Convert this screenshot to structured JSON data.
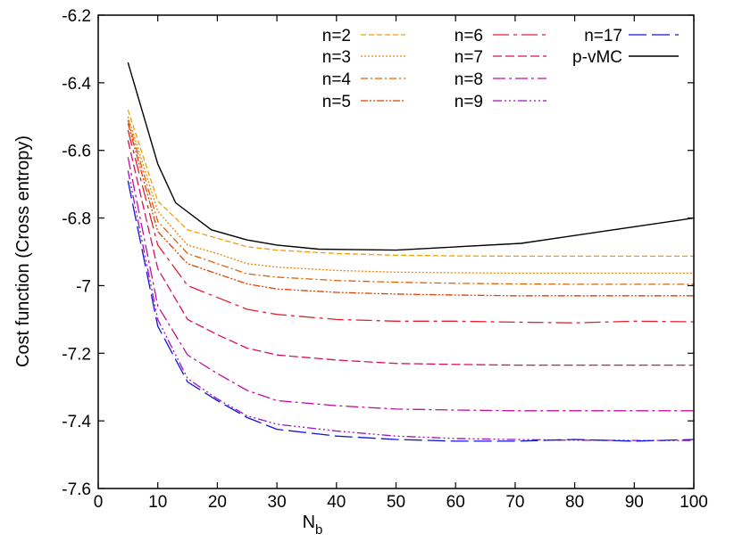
{
  "chart_data": {
    "type": "line",
    "title": "",
    "xlabel": "N",
    "xlabel_sub": "b",
    "ylabel": "Cost function (Cross entropy)",
    "xlim": [
      0,
      100
    ],
    "ylim": [
      -7.6,
      -6.2
    ],
    "xticks": [
      0,
      10,
      20,
      30,
      40,
      50,
      60,
      70,
      80,
      90,
      100
    ],
    "yticks": [
      -7.6,
      -7.4,
      -7.2,
      -7,
      -6.8,
      -6.6,
      -6.4,
      -6.2
    ],
    "xtick_labels": [
      "0",
      "10",
      "20",
      "30",
      "40",
      "50",
      "60",
      "70",
      "80",
      "90",
      "100"
    ],
    "ytick_labels": [
      "-7.6",
      "-7.4",
      "-7.2",
      "-7",
      "-6.8",
      "-6.6",
      "-6.4",
      "-6.2"
    ],
    "grid": false,
    "legend_position": "top-right",
    "series": [
      {
        "name": "n=2",
        "color": "#f0a000",
        "dash": "6,3",
        "x": [
          5,
          10,
          15,
          20,
          25,
          30,
          40,
          50,
          60,
          70,
          80,
          90,
          100
        ],
        "y": [
          -6.48,
          -6.75,
          -6.835,
          -6.86,
          -6.885,
          -6.895,
          -6.905,
          -6.91,
          -6.912,
          -6.913,
          -6.913,
          -6.913,
          -6.913
        ]
      },
      {
        "name": "n=3",
        "color": "#f08000",
        "dash": "2,2",
        "x": [
          5,
          10,
          15,
          20,
          25,
          30,
          40,
          50,
          60,
          70,
          80,
          90,
          100
        ],
        "y": [
          -6.5,
          -6.78,
          -6.88,
          -6.905,
          -6.935,
          -6.945,
          -6.955,
          -6.96,
          -6.962,
          -6.963,
          -6.963,
          -6.963,
          -6.963
        ]
      },
      {
        "name": "n=4",
        "color": "#e06000",
        "dash": "8,3,2,3",
        "x": [
          5,
          10,
          15,
          20,
          25,
          30,
          40,
          50,
          60,
          70,
          80,
          90,
          100
        ],
        "y": [
          -6.51,
          -6.81,
          -6.905,
          -6.935,
          -6.965,
          -6.975,
          -6.985,
          -6.99,
          -6.993,
          -6.995,
          -6.996,
          -6.996,
          -6.996
        ]
      },
      {
        "name": "n=5",
        "color": "#e04000",
        "dash": "8,2,2,2,2,2",
        "x": [
          5,
          10,
          15,
          20,
          25,
          30,
          40,
          50,
          60,
          70,
          80,
          90,
          100
        ],
        "y": [
          -6.52,
          -6.84,
          -6.935,
          -6.965,
          -6.995,
          -7.01,
          -7.02,
          -7.025,
          -7.028,
          -7.03,
          -7.03,
          -7.03,
          -7.03
        ]
      },
      {
        "name": "n=6",
        "color": "#e02030",
        "dash": "18,5,4,5",
        "x": [
          5,
          10,
          15,
          20,
          25,
          30,
          40,
          50,
          60,
          70,
          80,
          90,
          100
        ],
        "y": [
          -6.54,
          -6.88,
          -7.0,
          -7.035,
          -7.07,
          -7.085,
          -7.1,
          -7.105,
          -7.105,
          -7.108,
          -7.11,
          -7.105,
          -7.107
        ]
      },
      {
        "name": "n=7",
        "color": "#d81060",
        "dash": "10,4",
        "x": [
          5,
          10,
          15,
          20,
          25,
          30,
          40,
          50,
          60,
          70,
          80,
          90,
          100
        ],
        "y": [
          -6.57,
          -6.95,
          -7.1,
          -7.145,
          -7.185,
          -7.205,
          -7.22,
          -7.23,
          -7.233,
          -7.235,
          -7.235,
          -7.235,
          -7.235
        ]
      },
      {
        "name": "n=8",
        "color": "#c010a0",
        "dash": "14,4,3,4",
        "x": [
          5,
          10,
          15,
          20,
          25,
          30,
          40,
          50,
          60,
          70,
          80,
          90,
          100
        ],
        "y": [
          -6.62,
          -7.06,
          -7.205,
          -7.26,
          -7.31,
          -7.34,
          -7.355,
          -7.365,
          -7.368,
          -7.37,
          -7.37,
          -7.37,
          -7.37
        ]
      },
      {
        "name": "n=9",
        "color": "#a010c0",
        "dash": "10,3,2,3,2,3,2,3",
        "x": [
          5,
          10,
          15,
          20,
          25,
          30,
          40,
          50,
          60,
          70,
          80,
          90,
          100
        ],
        "y": [
          -6.66,
          -7.1,
          -7.275,
          -7.335,
          -7.385,
          -7.41,
          -7.43,
          -7.445,
          -7.452,
          -7.455,
          -7.457,
          -7.458,
          -7.458
        ]
      },
      {
        "name": "n=17",
        "color": "#1010e0",
        "dash": "20,6",
        "x": [
          5,
          10,
          15,
          20,
          25,
          30,
          40,
          50,
          60,
          70,
          80,
          90,
          100
        ],
        "y": [
          -6.69,
          -7.12,
          -7.285,
          -7.34,
          -7.39,
          -7.425,
          -7.445,
          -7.455,
          -7.46,
          -7.46,
          -7.455,
          -7.46,
          -7.455
        ]
      },
      {
        "name": "p-vMC",
        "color": "#000000",
        "dash": "",
        "x": [
          5,
          10,
          13,
          19,
          25,
          30,
          37,
          50,
          71,
          100
        ],
        "y": [
          -6.34,
          -6.64,
          -6.755,
          -6.835,
          -6.865,
          -6.88,
          -6.892,
          -6.895,
          -6.875,
          -6.8
        ]
      }
    ]
  }
}
